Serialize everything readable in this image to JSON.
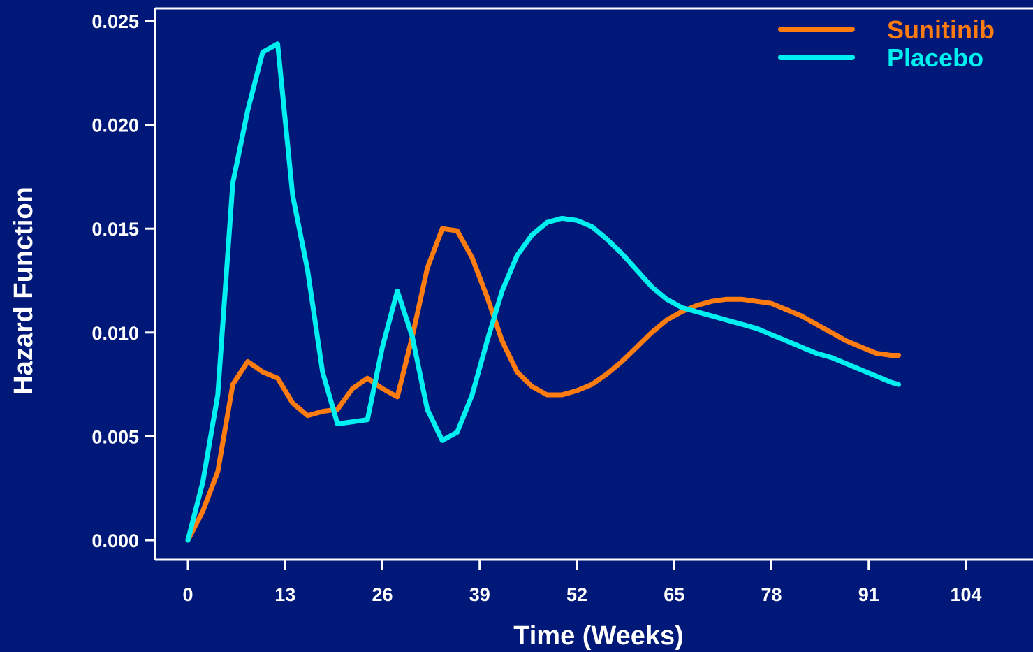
{
  "chart_data": {
    "type": "line",
    "title": "",
    "xlabel": "Time (Weeks)",
    "ylabel": "Hazard Function",
    "xlim": [
      0,
      104
    ],
    "ylim": [
      0,
      0.025
    ],
    "x_ticks": [
      0,
      13,
      26,
      39,
      52,
      65,
      78,
      91,
      104
    ],
    "y_ticks": [
      0.0,
      0.005,
      0.01,
      0.015,
      0.02,
      0.025
    ],
    "y_tick_labels": [
      "0.000",
      "0.005",
      "0.010",
      "0.015",
      "0.020",
      "0.025"
    ],
    "grid": false,
    "legend_position": "top-right",
    "background": "#001878",
    "series": [
      {
        "name": "Sunitinib",
        "color": "#ff7c10",
        "x": [
          0,
          2,
          4,
          6,
          8,
          10,
          12,
          14,
          16,
          18,
          20,
          22,
          24,
          26,
          28,
          30,
          32,
          34,
          36,
          38,
          40,
          42,
          44,
          46,
          48,
          50,
          52,
          54,
          56,
          58,
          60,
          62,
          64,
          66,
          68,
          70,
          72,
          74,
          76,
          78,
          80,
          82,
          84,
          86,
          88,
          90,
          92,
          94,
          95
        ],
        "y": [
          0.0,
          0.0014,
          0.0033,
          0.0075,
          0.0086,
          0.0081,
          0.0078,
          0.0066,
          0.006,
          0.0062,
          0.0063,
          0.0073,
          0.0078,
          0.0073,
          0.0069,
          0.0098,
          0.0131,
          0.015,
          0.0149,
          0.0136,
          0.0117,
          0.0096,
          0.0081,
          0.0074,
          0.007,
          0.007,
          0.0072,
          0.0075,
          0.008,
          0.0086,
          0.0093,
          0.01,
          0.0106,
          0.011,
          0.0113,
          0.0115,
          0.0116,
          0.0116,
          0.0115,
          0.0114,
          0.0111,
          0.0108,
          0.0104,
          0.01,
          0.0096,
          0.0093,
          0.009,
          0.0089,
          0.0089
        ]
      },
      {
        "name": "Placebo",
        "color": "#00f0f0",
        "x": [
          0,
          2,
          4,
          6,
          8,
          10,
          12,
          14,
          16,
          18,
          20,
          22,
          24,
          26,
          28,
          30,
          32,
          34,
          36,
          38,
          40,
          42,
          44,
          46,
          48,
          50,
          52,
          54,
          56,
          58,
          60,
          62,
          64,
          66,
          68,
          70,
          72,
          74,
          76,
          78,
          80,
          82,
          84,
          86,
          88,
          90,
          92,
          94,
          95
        ],
        "y": [
          0.0,
          0.0028,
          0.007,
          0.0172,
          0.0207,
          0.0235,
          0.0239,
          0.0166,
          0.013,
          0.0081,
          0.0056,
          0.0057,
          0.0058,
          0.0093,
          0.012,
          0.0098,
          0.0063,
          0.0048,
          0.0052,
          0.007,
          0.0096,
          0.012,
          0.0137,
          0.0147,
          0.0153,
          0.0155,
          0.0154,
          0.0151,
          0.0145,
          0.0138,
          0.013,
          0.0122,
          0.0116,
          0.0112,
          0.011,
          0.0108,
          0.0106,
          0.0104,
          0.0102,
          0.0099,
          0.0096,
          0.0093,
          0.009,
          0.0088,
          0.0085,
          0.0082,
          0.0079,
          0.0076,
          0.0075
        ]
      }
    ]
  }
}
